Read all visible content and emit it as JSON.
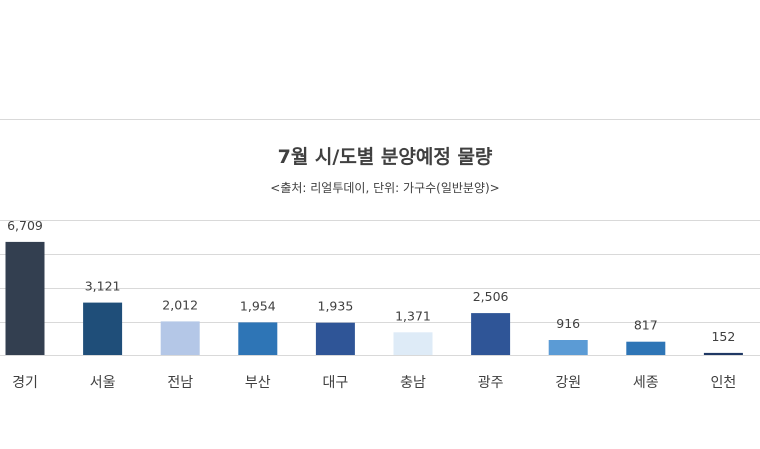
{
  "chart_data": {
    "type": "bar",
    "title": "7월 시/도별 분양예정 물량",
    "subtitle": "<출처: 리얼투데이, 단위: 가구수(일반분양)>",
    "categories": [
      "경기",
      "서울",
      "전남",
      "부산",
      "대구",
      "충남",
      "광주",
      "강원",
      "세종",
      "인천"
    ],
    "values": [
      6709,
      3121,
      2012,
      1954,
      1935,
      1371,
      2506,
      916,
      817,
      152
    ],
    "value_labels": [
      "6,709",
      "3,121",
      "2,012",
      "1,954",
      "1,935",
      "1,371",
      "2,506",
      "916",
      "817",
      "152"
    ],
    "bar_colors": [
      "#333f50",
      "#1f4e79",
      "#b4c7e7",
      "#2e75b6",
      "#2f5597",
      "#deebf7",
      "#2f5597",
      "#5b9bd5",
      "#2e75b6",
      "#1f3864"
    ],
    "grid": true,
    "legend": "none"
  }
}
